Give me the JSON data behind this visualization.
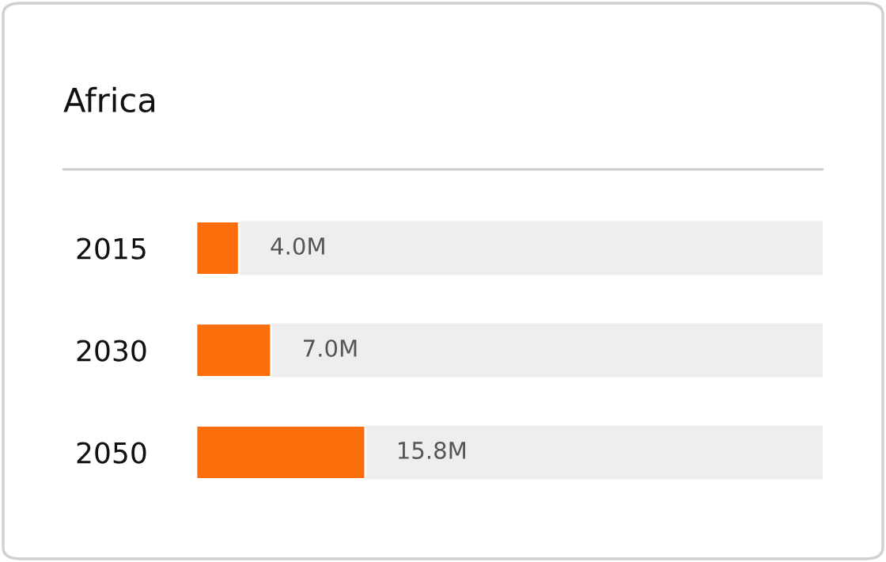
{
  "chart_data": {
    "type": "bar",
    "orientation": "horizontal",
    "title": "Africa",
    "categories": [
      "2015",
      "2030",
      "2050"
    ],
    "values": [
      4.0,
      7.0,
      15.8
    ],
    "value_labels": [
      "4.0M",
      "7.0M",
      "15.8M"
    ],
    "color": "#fc6d0c"
  }
}
